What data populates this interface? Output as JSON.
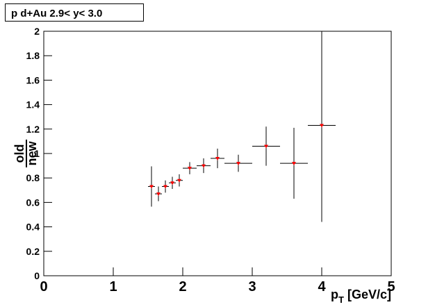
{
  "chart_data": {
    "type": "scatter",
    "title": "p  d+Au 2.9< y< 3.0",
    "xlabel": {
      "main": "p",
      "subscript": "T",
      "unit": " [GeV/c]"
    },
    "ylabel": {
      "numerator": "old",
      "denominator": "new"
    },
    "x": [
      1.55,
      1.65,
      1.75,
      1.85,
      1.95,
      2.1,
      2.3,
      2.5,
      2.8,
      3.2,
      3.6,
      4.0
    ],
    "values": [
      0.73,
      0.67,
      0.73,
      0.76,
      0.78,
      0.88,
      0.9,
      0.96,
      0.92,
      1.06,
      0.92,
      1.23
    ],
    "xerr": [
      0.05,
      0.05,
      0.05,
      0.05,
      0.05,
      0.1,
      0.1,
      0.1,
      0.2,
      0.2,
      0.2,
      0.2
    ],
    "yerr": [
      0.165,
      0.06,
      0.05,
      0.05,
      0.05,
      0.05,
      0.06,
      0.08,
      0.07,
      0.16,
      0.29,
      0.79
    ],
    "color": "#ff0000",
    "xlim": [
      0,
      5
    ],
    "xticks": [
      0,
      1,
      2,
      3,
      4,
      5
    ],
    "ylim": [
      0,
      2
    ],
    "yticks": [
      0,
      0.2,
      0.4,
      0.6,
      0.8,
      1,
      1.2,
      1.4,
      1.6,
      1.8,
      2
    ]
  }
}
